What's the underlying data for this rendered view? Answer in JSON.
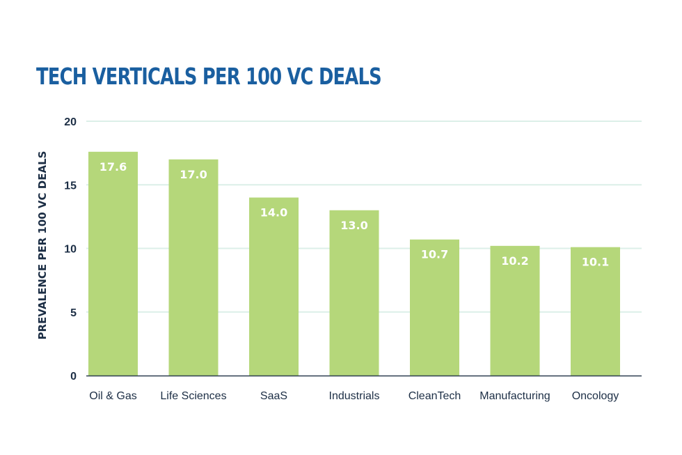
{
  "chart_data": {
    "type": "bar",
    "title": "TECH VERTICALS PER 100 VC DEALS",
    "xlabel": "",
    "ylabel": "PREVALENCE PER 100 VC DEALS",
    "categories": [
      "Oil & Gas",
      "Life Sciences",
      "SaaS",
      "Industrials",
      "CleanTech",
      "Manufacturing",
      "Oncology"
    ],
    "values": [
      17.6,
      17.0,
      14.0,
      13.0,
      10.7,
      10.2,
      10.1
    ],
    "data_labels": [
      "17.6",
      "17.0",
      "14.0",
      "13.0",
      "10.7",
      "10.2",
      "10.1"
    ],
    "ylim": [
      0,
      20
    ],
    "yticks": [
      0,
      5,
      10,
      15,
      20
    ],
    "grid": true,
    "colors": {
      "bar": "#b5d77a",
      "title": "#1a5fa0",
      "text": "#1c2e45",
      "grid": "#dcefe8",
      "axis": "#2c3e50"
    }
  }
}
